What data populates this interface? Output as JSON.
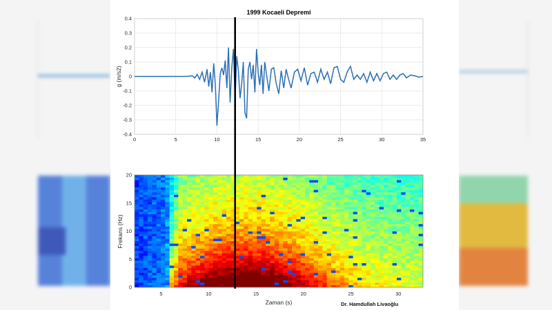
{
  "chart_data": [
    {
      "type": "line",
      "title": "1999 Kocaeli Depremi",
      "ylabel": "g (m/s2)",
      "xlabel": "",
      "xlim": [
        0,
        35
      ],
      "ylim": [
        -0.4,
        0.4
      ],
      "xticks": [
        "0",
        "5",
        "10",
        "15",
        "20",
        "25",
        "30",
        "35"
      ],
      "yticks": [
        "0.4",
        "0.3",
        "0.2",
        "0.1",
        "0",
        "-0.1",
        "-0.2",
        "-0.3",
        "-0.4"
      ],
      "grid": true,
      "line_color": "#2a6fb5",
      "cursor_time": 12.2,
      "series": [
        {
          "x": [
            0,
            1,
            2,
            3,
            4,
            5,
            6,
            6.5,
            7,
            7.3,
            7.6,
            7.9,
            8.2,
            8.5,
            8.8,
            9.0,
            9.2,
            9.4,
            9.6,
            9.8,
            10.0,
            10.2,
            10.4,
            10.6,
            10.8,
            11.0,
            11.2,
            11.4,
            11.6,
            11.8,
            12.0,
            12.2,
            12.4,
            12.6,
            12.8,
            13.0,
            13.2,
            13.4,
            13.6,
            13.8,
            14.0,
            14.2,
            14.4,
            14.6,
            14.8,
            15.0,
            15.2,
            15.4,
            15.6,
            15.8,
            16.0,
            16.3,
            16.6,
            16.9,
            17.2,
            17.5,
            17.8,
            18.1,
            18.4,
            18.7,
            19.0,
            19.4,
            19.8,
            20.2,
            20.6,
            21.0,
            21.4,
            21.8,
            22.2,
            22.6,
            23.0,
            23.4,
            23.8,
            24.2,
            24.6,
            25.0,
            25.4,
            25.8,
            26.2,
            26.6,
            27.0,
            27.4,
            27.8,
            28.2,
            28.6,
            29.0,
            29.4,
            29.8,
            30.2,
            30.6,
            31.0,
            31.4,
            31.8,
            32.2,
            32.6,
            33.0,
            33.5,
            34.0,
            34.5,
            35.0
          ],
          "values": [
            0,
            0,
            0,
            0,
            0,
            0,
            0,
            0.002,
            0.005,
            -0.01,
            0.015,
            -0.02,
            0.03,
            -0.04,
            0.05,
            -0.07,
            0.03,
            -0.11,
            0.09,
            -0.05,
            -0.34,
            -0.17,
            0.02,
            0.06,
            0.01,
            0.11,
            -0.08,
            0.2,
            -0.18,
            0.06,
            0.19,
            -0.16,
            0.14,
            0.04,
            -0.15,
            -0.05,
            0.1,
            -0.25,
            -0.29,
            0.05,
            0.1,
            -0.02,
            0.08,
            -0.11,
            0.19,
            0.03,
            -0.06,
            0.08,
            -0.12,
            0.1,
            0.02,
            -0.1,
            0.05,
            0.06,
            -0.05,
            -0.12,
            0.04,
            -0.08,
            0.05,
            -0.02,
            -0.08,
            0.03,
            0.05,
            -0.03,
            0.06,
            -0.06,
            0.02,
            0.03,
            -0.04,
            0.05,
            -0.02,
            0.03,
            -0.05,
            0.06,
            0.07,
            -0.02,
            -0.04,
            0.03,
            0.07,
            -0.02,
            0.01,
            -0.02,
            0.02,
            -0.04,
            0.03,
            -0.03,
            0.02,
            -0.03,
            0.02,
            0.03,
            -0.02,
            0.01,
            -0.02,
            0.01,
            0.02,
            -0.01,
            0.01,
            0.005,
            -0.005,
            0
          ]
        }
      ]
    },
    {
      "type": "heatmap",
      "title": "",
      "xlabel": "Zaman (s)",
      "ylabel": "Frekans (Hz)",
      "xlim": [
        2.2,
        32.6
      ],
      "ylim": [
        0,
        20
      ],
      "xticks": [
        "5",
        "10",
        "15",
        "20",
        "25",
        "30"
      ],
      "yticks": [
        "20",
        "15",
        "10",
        "5",
        "0"
      ],
      "colormap": "jet",
      "cursor_time": 12.2
    }
  ],
  "credit": {
    "line1": "Dr. Hamdullah Livaoğlu"
  }
}
